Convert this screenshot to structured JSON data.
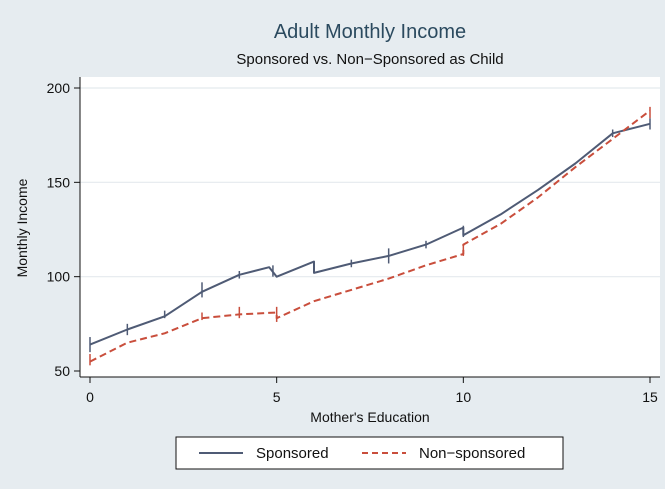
{
  "chart_data": {
    "type": "line",
    "title": "Adult Monthly Income",
    "subtitle": "Sponsored vs. Non−Sponsored as Child",
    "xlabel": "Mother's Education",
    "ylabel": "Monthly Income",
    "xlim": [
      0,
      15
    ],
    "ylim": [
      50,
      200
    ],
    "x_ticks": [
      0,
      5,
      10,
      15
    ],
    "x_tick_labels": [
      "0",
      "5",
      "10",
      "15"
    ],
    "y_ticks": [
      50,
      100,
      150,
      200
    ],
    "y_tick_labels": [
      "50",
      "100",
      "150",
      "200"
    ],
    "grid": "horizontal",
    "legend": "bottom",
    "series": [
      {
        "name": "Sponsored",
        "color": "#4f5b75",
        "style": "solid",
        "points": [
          [
            0,
            64
          ],
          [
            1,
            72
          ],
          [
            2,
            79
          ],
          [
            3,
            92
          ],
          [
            4,
            101
          ],
          [
            4.8,
            105
          ],
          [
            5,
            100
          ],
          [
            6,
            108
          ],
          [
            6,
            102
          ],
          [
            7,
            107
          ],
          [
            8,
            111
          ],
          [
            9,
            117
          ],
          [
            10,
            126
          ],
          [
            10,
            122
          ],
          [
            11,
            133
          ],
          [
            12,
            146
          ],
          [
            13,
            160
          ],
          [
            14,
            176
          ],
          [
            15,
            181
          ]
        ],
        "error_bars": [
          [
            0,
            64,
            4
          ],
          [
            1,
            72,
            3
          ],
          [
            2,
            80,
            2
          ],
          [
            3,
            93,
            4
          ],
          [
            4,
            101,
            2
          ],
          [
            4.9,
            103,
            3
          ],
          [
            6,
            105,
            3
          ],
          [
            7,
            107,
            2
          ],
          [
            8,
            111,
            4
          ],
          [
            9,
            117,
            2
          ],
          [
            10,
            124,
            3
          ],
          [
            14,
            176,
            2
          ],
          [
            15,
            181,
            3
          ]
        ]
      },
      {
        "name": "Non−sponsored",
        "color": "#c94e3c",
        "style": "dashed",
        "points": [
          [
            0,
            55
          ],
          [
            1,
            65
          ],
          [
            2,
            70
          ],
          [
            3,
            78
          ],
          [
            4,
            80
          ],
          [
            5,
            81
          ],
          [
            5,
            78
          ],
          [
            6,
            87
          ],
          [
            7,
            93
          ],
          [
            8,
            99
          ],
          [
            9,
            106
          ],
          [
            10,
            112
          ],
          [
            10,
            117
          ],
          [
            11,
            128
          ],
          [
            12,
            142
          ],
          [
            13,
            158
          ],
          [
            14,
            173
          ],
          [
            15,
            188
          ]
        ],
        "error_bars": [
          [
            0,
            56,
            3
          ],
          [
            3,
            79,
            2
          ],
          [
            4,
            81,
            3
          ],
          [
            5,
            80,
            4
          ],
          [
            10,
            114,
            3
          ],
          [
            15,
            187,
            3
          ]
        ]
      }
    ]
  }
}
